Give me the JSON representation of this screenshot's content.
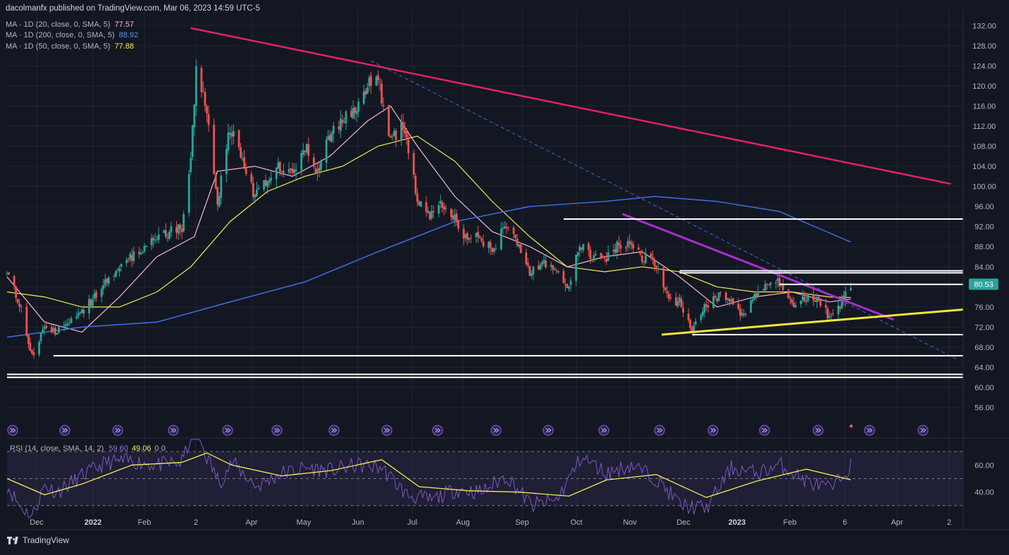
{
  "header": {
    "publisher": "dacolmanfx published on TradingView.com, Mar 06, 2023 14:59 UTC-5",
    "indicators": [
      {
        "label": "MA · 1D (20, close, 0, SMA, 5)",
        "value": "77.57",
        "color": "#f7b7d3"
      },
      {
        "label": "MA · 1D (200, close, 0, SMA, 5)",
        "value": "88.92",
        "color": "#3b6bd9"
      },
      {
        "label": "MA · 1D (50, close, 0, SMA, 5)",
        "value": "77.88",
        "color": "#f2ec54"
      }
    ]
  },
  "rsi_header": {
    "label": "RSI (14, close, SMA, 14, 2)",
    "rsi": "59.60",
    "ma": "49.06",
    "extra": "0  0"
  },
  "price_badge": "80.53",
  "footer": {
    "brand": "TradingView"
  },
  "colors": {
    "up": "#26a69a",
    "down": "#ef5350",
    "bg": "#131722",
    "grid": "#1f2431",
    "downtrend": "#e5215f",
    "channel": "#ad2bd1",
    "support": "#f5e63a",
    "rsi": "#7e57c2"
  },
  "chart_data": {
    "type": "line",
    "title": "",
    "xlabel": "",
    "ylabel": "",
    "x_axis_labels": [
      "Dec",
      "2022",
      "Feb",
      "2",
      "Apr",
      "May",
      "Jun",
      "Jul",
      "Aug",
      "Sep",
      "Oct",
      "Nov",
      "Dec",
      "2023",
      "Feb",
      "6",
      "Apr",
      "2"
    ],
    "y_axis_ticks": [
      "132.00",
      "128.00",
      "124.00",
      "120.00",
      "116.00",
      "112.00",
      "108.00",
      "104.00",
      "100.00",
      "96.00",
      "92.00",
      "88.00",
      "84.00",
      "80.00",
      "76.00",
      "72.00",
      "68.00",
      "64.00",
      "60.00",
      "56.00"
    ],
    "ylim": [
      53,
      134
    ],
    "x_range": [
      "2021-11-18",
      "2023-05-08"
    ],
    "series": [
      {
        "role": "price",
        "points": [
          [
            "2021-11-18",
            83
          ],
          [
            "2021-11-26",
            76
          ],
          [
            "2021-12-02",
            66
          ],
          [
            "2021-12-09",
            72
          ],
          [
            "2021-12-16",
            71
          ],
          [
            "2021-12-23",
            73
          ],
          [
            "2021-12-30",
            75
          ],
          [
            "2022-01-06",
            78
          ],
          [
            "2022-01-13",
            81
          ],
          [
            "2022-01-20",
            84
          ],
          [
            "2022-01-27",
            86
          ],
          [
            "2022-02-03",
            88
          ],
          [
            "2022-02-10",
            90
          ],
          [
            "2022-02-17",
            91
          ],
          [
            "2022-02-24",
            92
          ],
          [
            "2022-03-01",
            105
          ],
          [
            "2022-03-04",
            123
          ],
          [
            "2022-03-08",
            118
          ],
          [
            "2022-03-11",
            112
          ],
          [
            "2022-03-16",
            97
          ],
          [
            "2022-03-23",
            112
          ],
          [
            "2022-03-30",
            106
          ],
          [
            "2022-04-06",
            98
          ],
          [
            "2022-04-13",
            101
          ],
          [
            "2022-04-20",
            104
          ],
          [
            "2022-04-27",
            102
          ],
          [
            "2022-05-04",
            108
          ],
          [
            "2022-05-11",
            103
          ],
          [
            "2022-05-18",
            110
          ],
          [
            "2022-05-25",
            113
          ],
          [
            "2022-06-01",
            115
          ],
          [
            "2022-06-08",
            120
          ],
          [
            "2022-06-14",
            121
          ],
          [
            "2022-06-21",
            109
          ],
          [
            "2022-06-28",
            112
          ],
          [
            "2022-07-06",
            98
          ],
          [
            "2022-07-13",
            94
          ],
          [
            "2022-07-20",
            97
          ],
          [
            "2022-07-27",
            94
          ],
          [
            "2022-08-03",
            89
          ],
          [
            "2022-08-10",
            90
          ],
          [
            "2022-08-17",
            87
          ],
          [
            "2022-08-24",
            92
          ],
          [
            "2022-08-31",
            89
          ],
          [
            "2022-09-07",
            83
          ],
          [
            "2022-09-14",
            85
          ],
          [
            "2022-09-21",
            83
          ],
          [
            "2022-09-28",
            80
          ],
          [
            "2022-10-05",
            88
          ],
          [
            "2022-10-12",
            86
          ],
          [
            "2022-10-19",
            85
          ],
          [
            "2022-10-26",
            88
          ],
          [
            "2022-11-02",
            88
          ],
          [
            "2022-11-09",
            86
          ],
          [
            "2022-11-16",
            85
          ],
          [
            "2022-11-23",
            78
          ],
          [
            "2022-11-30",
            77
          ],
          [
            "2022-12-07",
            72
          ],
          [
            "2022-12-14",
            76
          ],
          [
            "2022-12-21",
            78
          ],
          [
            "2022-12-28",
            78
          ],
          [
            "2023-01-04",
            74
          ],
          [
            "2023-01-11",
            78
          ],
          [
            "2023-01-18",
            80
          ],
          [
            "2023-01-25",
            81
          ],
          [
            "2023-02-01",
            76
          ],
          [
            "2023-02-08",
            78
          ],
          [
            "2023-02-15",
            78
          ],
          [
            "2023-02-22",
            74
          ],
          [
            "2023-03-01",
            77
          ],
          [
            "2023-03-06",
            80.53
          ]
        ]
      },
      {
        "name": "MA · 1D (20, close, 0, SMA, 5)",
        "points": [
          [
            "2021-11-18",
            82
          ],
          [
            "2021-12-09",
            73
          ],
          [
            "2021-12-30",
            71
          ],
          [
            "2022-01-20",
            78
          ],
          [
            "2022-02-10",
            86
          ],
          [
            "2022-03-03",
            90
          ],
          [
            "2022-03-16",
            103
          ],
          [
            "2022-04-06",
            104
          ],
          [
            "2022-04-27",
            102
          ],
          [
            "2022-05-18",
            106
          ],
          [
            "2022-06-08",
            113
          ],
          [
            "2022-06-21",
            116
          ],
          [
            "2022-07-06",
            108
          ],
          [
            "2022-07-27",
            98
          ],
          [
            "2022-08-17",
            91
          ],
          [
            "2022-09-07",
            88
          ],
          [
            "2022-09-28",
            84
          ],
          [
            "2022-10-19",
            86
          ],
          [
            "2022-11-09",
            87
          ],
          [
            "2022-11-30",
            82
          ],
          [
            "2022-12-21",
            76
          ],
          [
            "2023-01-11",
            78
          ],
          [
            "2023-02-01",
            79
          ],
          [
            "2023-02-22",
            77
          ],
          [
            "2023-03-06",
            77.57
          ]
        ]
      },
      {
        "name": "MA · 1D (50, close, 0, SMA, 5)",
        "points": [
          [
            "2021-11-18",
            79
          ],
          [
            "2021-12-09",
            78
          ],
          [
            "2021-12-30",
            76
          ],
          [
            "2022-01-20",
            76
          ],
          [
            "2022-02-10",
            79
          ],
          [
            "2022-03-01",
            84
          ],
          [
            "2022-03-23",
            93
          ],
          [
            "2022-04-13",
            99
          ],
          [
            "2022-05-04",
            102
          ],
          [
            "2022-05-25",
            104
          ],
          [
            "2022-06-14",
            108
          ],
          [
            "2022-07-06",
            110
          ],
          [
            "2022-07-27",
            105
          ],
          [
            "2022-08-17",
            97
          ],
          [
            "2022-09-07",
            90
          ],
          [
            "2022-09-28",
            84
          ],
          [
            "2022-10-19",
            83
          ],
          [
            "2022-11-09",
            84
          ],
          [
            "2022-11-30",
            83
          ],
          [
            "2022-12-21",
            80
          ],
          [
            "2023-01-11",
            79
          ],
          [
            "2023-02-01",
            79
          ],
          [
            "2023-02-22",
            78
          ],
          [
            "2023-03-06",
            77.88
          ]
        ]
      },
      {
        "name": "MA · 1D (200, close, 0, SMA, 5)",
        "points": [
          [
            "2021-11-18",
            70
          ],
          [
            "2021-12-30",
            72
          ],
          [
            "2022-02-10",
            73
          ],
          [
            "2022-03-23",
            77
          ],
          [
            "2022-05-04",
            81
          ],
          [
            "2022-06-14",
            87
          ],
          [
            "2022-07-27",
            93
          ],
          [
            "2022-09-07",
            96
          ],
          [
            "2022-10-19",
            97
          ],
          [
            "2022-11-16",
            98
          ],
          [
            "2022-12-21",
            97
          ],
          [
            "2023-01-25",
            95
          ],
          [
            "2023-03-06",
            88.92
          ]
        ]
      }
    ],
    "drawn_lines": [
      {
        "role": "downtrend",
        "from": [
          "2022-03-01",
          131.5
        ],
        "to": [
          "2023-05-01",
          100.5
        ]
      },
      {
        "role": "dashed-trend",
        "from": [
          "2022-06-10",
          125
        ],
        "to": [
          "2023-05-05",
          65.5
        ]
      },
      {
        "role": "channel-top",
        "from": [
          "2022-10-29",
          94.5
        ],
        "to": [
          "2023-03-30",
          73.5
        ]
      },
      {
        "role": "support-rising",
        "from": [
          "2022-11-20",
          70.5
        ],
        "to": [
          "2023-05-08",
          75.5
        ]
      },
      {
        "role": "horizontal",
        "from": [
          "2022-09-26",
          93.5
        ],
        "to": [
          "2023-05-08",
          93.5
        ]
      },
      {
        "role": "horizontal",
        "from": [
          "2022-11-30",
          83.2
        ],
        "to": [
          "2023-05-08",
          83.2
        ]
      },
      {
        "role": "horizontal",
        "from": [
          "2022-11-30",
          82.8
        ],
        "to": [
          "2023-05-08",
          82.8
        ]
      },
      {
        "role": "horizontal",
        "from": [
          "2023-01-25",
          80.5
        ],
        "to": [
          "2023-05-08",
          80.5
        ]
      },
      {
        "role": "horizontal",
        "from": [
          "2022-12-07",
          70.5
        ],
        "to": [
          "2023-05-08",
          70.5
        ]
      },
      {
        "role": "horizontal",
        "from": [
          "2021-12-14",
          66.3
        ],
        "to": [
          "2023-05-08",
          66.3
        ]
      },
      {
        "role": "horizontal",
        "from": [
          "2021-11-18",
          62.6
        ],
        "to": [
          "2023-05-08",
          62.6
        ]
      },
      {
        "role": "horizontal",
        "from": [
          "2021-11-18",
          62.0
        ],
        "to": [
          "2023-05-08",
          62.0
        ]
      }
    ],
    "rsi": {
      "ylim": [
        20,
        80
      ],
      "ticks": [
        "60.00",
        "40.00"
      ],
      "bands": [
        70,
        50,
        30
      ],
      "rsi_points": [
        [
          "2021-11-18",
          45
        ],
        [
          "2021-11-25",
          30
        ],
        [
          "2021-12-02",
          22
        ],
        [
          "2021-12-09",
          45
        ],
        [
          "2021-12-16",
          40
        ],
        [
          "2021-12-30",
          52
        ],
        [
          "2022-01-13",
          62
        ],
        [
          "2022-01-27",
          63
        ],
        [
          "2022-02-10",
          60
        ],
        [
          "2022-02-24",
          62
        ],
        [
          "2022-03-03",
          88
        ],
        [
          "2022-03-10",
          66
        ],
        [
          "2022-03-17",
          47
        ],
        [
          "2022-03-24",
          62
        ],
        [
          "2022-04-07",
          44
        ],
        [
          "2022-04-21",
          54
        ],
        [
          "2022-05-05",
          58
        ],
        [
          "2022-05-19",
          56
        ],
        [
          "2022-06-02",
          60
        ],
        [
          "2022-06-16",
          58
        ],
        [
          "2022-06-30",
          38
        ],
        [
          "2022-07-14",
          34
        ],
        [
          "2022-07-28",
          42
        ],
        [
          "2022-08-11",
          40
        ],
        [
          "2022-08-25",
          52
        ],
        [
          "2022-09-08",
          30
        ],
        [
          "2022-09-22",
          34
        ],
        [
          "2022-10-06",
          66
        ],
        [
          "2022-10-20",
          54
        ],
        [
          "2022-11-03",
          60
        ],
        [
          "2022-11-17",
          50
        ],
        [
          "2022-12-01",
          30
        ],
        [
          "2022-12-15",
          28
        ],
        [
          "2022-12-29",
          58
        ],
        [
          "2023-01-12",
          54
        ],
        [
          "2023-01-26",
          60
        ],
        [
          "2023-02-09",
          48
        ],
        [
          "2023-02-23",
          42
        ],
        [
          "2023-03-06",
          59.6
        ]
      ],
      "ma_points": [
        [
          "2021-11-18",
          50
        ],
        [
          "2021-12-09",
          38
        ],
        [
          "2021-12-30",
          46
        ],
        [
          "2022-01-27",
          60
        ],
        [
          "2022-02-24",
          62
        ],
        [
          "2022-03-10",
          69
        ],
        [
          "2022-03-24",
          60
        ],
        [
          "2022-04-21",
          52
        ],
        [
          "2022-05-19",
          56
        ],
        [
          "2022-06-16",
          64
        ],
        [
          "2022-07-07",
          44
        ],
        [
          "2022-08-04",
          41
        ],
        [
          "2022-09-01",
          40
        ],
        [
          "2022-09-29",
          37
        ],
        [
          "2022-10-20",
          49
        ],
        [
          "2022-11-17",
          53
        ],
        [
          "2022-12-15",
          36
        ],
        [
          "2023-01-12",
          48
        ],
        [
          "2023-02-09",
          57
        ],
        [
          "2023-03-06",
          49.06
        ]
      ]
    }
  }
}
